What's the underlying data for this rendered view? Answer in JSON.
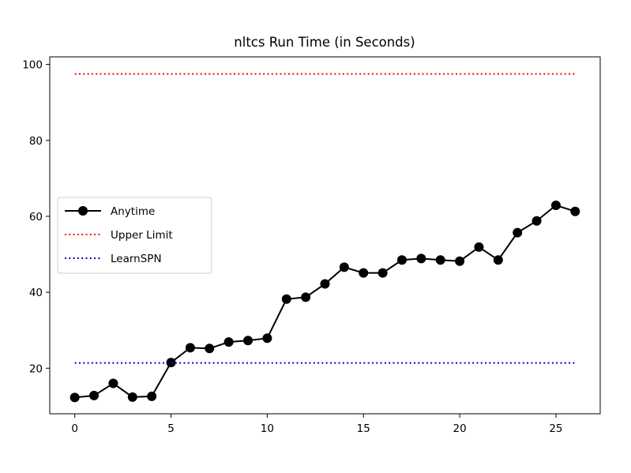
{
  "chart_data": {
    "type": "line",
    "title": "nltcs Run Time (in Seconds)",
    "xlabel": "",
    "ylabel": "",
    "xlim": [
      -1.3,
      27.3
    ],
    "ylim": [
      8,
      102
    ],
    "x_ticks": [
      0,
      5,
      10,
      15,
      20,
      25
    ],
    "y_ticks": [
      20,
      40,
      60,
      80,
      100
    ],
    "legend_position": "center-left",
    "grid": false,
    "series": [
      {
        "name": "Anytime",
        "color": "#000000",
        "style": "solid",
        "marker": "circle",
        "x": [
          0,
          1,
          2,
          3,
          4,
          5,
          6,
          7,
          8,
          9,
          10,
          11,
          12,
          13,
          14,
          15,
          16,
          17,
          18,
          19,
          20,
          21,
          22,
          23,
          24,
          25,
          26
        ],
        "values": [
          12.3,
          12.8,
          16.0,
          12.4,
          12.6,
          21.5,
          25.4,
          25.2,
          26.9,
          27.3,
          27.9,
          38.2,
          38.7,
          42.2,
          46.6,
          45.1,
          45.1,
          48.5,
          48.9,
          48.5,
          48.2,
          51.9,
          48.5,
          55.7,
          58.8,
          62.9,
          61.3
        ]
      },
      {
        "name": "Upper Limit",
        "color": "#ff0000",
        "style": "dotted",
        "x": [
          0,
          26
        ],
        "values": [
          97.5,
          97.5
        ]
      },
      {
        "name": "LearnSPN",
        "color": "#0000cc",
        "style": "dotted",
        "x": [
          0,
          26
        ],
        "values": [
          21.4,
          21.4
        ]
      }
    ]
  }
}
